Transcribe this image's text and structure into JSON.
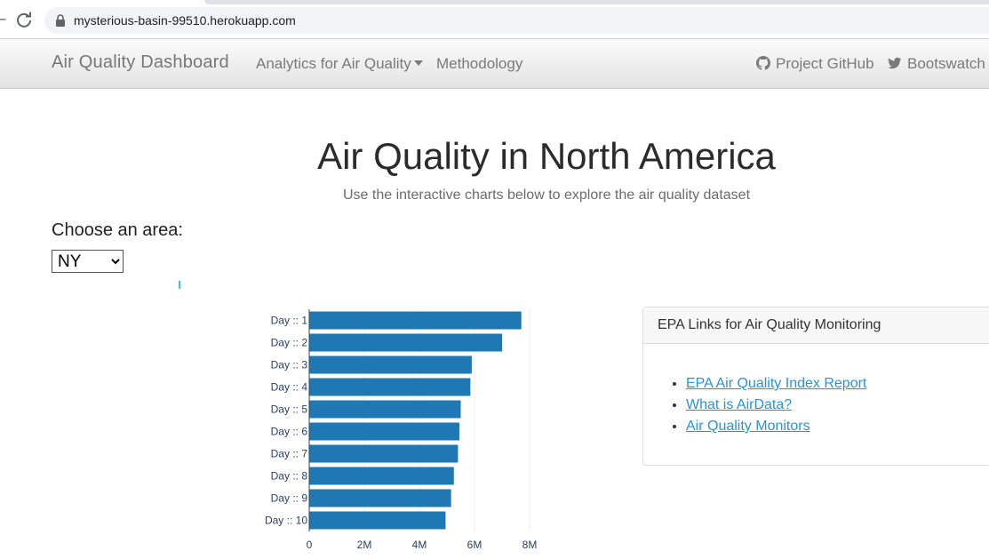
{
  "browser": {
    "url": "mysterious-basin-99510.herokuapp.com"
  },
  "navbar": {
    "brand": "Air Quality Dashboard",
    "analytics_label": "Analytics for Air Quality",
    "methodology_label": "Methodology",
    "github_label": "Project GitHub",
    "bootswatch_label": "Bootswatch"
  },
  "header": {
    "title": "Air Quality in North America",
    "subtitle": "Use the interactive charts below to explore the air quality dataset"
  },
  "area_selector": {
    "label": "Choose an area:",
    "selected": "NY"
  },
  "chart_data": {
    "type": "bar",
    "orientation": "horizontal",
    "categories": [
      "Day ::  1",
      "Day ::  2",
      "Day ::  3",
      "Day ::  4",
      "Day ::  5",
      "Day ::  6",
      "Day ::  7",
      "Day ::  8",
      "Day ::  9",
      "Day ::  10"
    ],
    "values": [
      7700000,
      7000000,
      5900000,
      5850000,
      5500000,
      5450000,
      5400000,
      5250000,
      5150000,
      4950000
    ],
    "xlim": [
      0,
      8000000
    ],
    "xticks": [
      "0",
      "2M",
      "4M",
      "6M",
      "8M"
    ],
    "bar_color": "#1f77b4",
    "grid": true
  },
  "links_card": {
    "header": "EPA Links for Air Quality Monitoring",
    "links": [
      {
        "label": "EPA Air Quality Index Report"
      },
      {
        "label": "What is AirData?"
      },
      {
        "label": "Air Quality Monitors"
      }
    ]
  }
}
